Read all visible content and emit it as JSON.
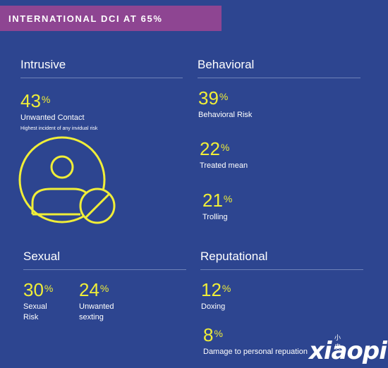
{
  "banner": "INTERNATIONAL DCI AT 65%",
  "sections": {
    "intrusive": "Intrusive",
    "behavioral": "Behavioral",
    "sexual": "Sexual",
    "reputational": "Reputational"
  },
  "stats": {
    "unwanted_contact": {
      "value": "43",
      "unit": "%",
      "label": "Unwanted Contact",
      "note": "Highest incident of any invidual risk"
    },
    "behavioral_risk": {
      "value": "39",
      "unit": "%",
      "label": "Behavioral Risk"
    },
    "treated_mean": {
      "value": "22",
      "unit": "%",
      "label": "Treated mean"
    },
    "trolling": {
      "value": "21",
      "unit": "%",
      "label": "Trolling"
    },
    "sexual_risk": {
      "value": "30",
      "unit": "%",
      "label_line1": "Sexual",
      "label_line2": "Risk"
    },
    "unwanted_sexting": {
      "value": "24",
      "unit": "%",
      "label_line1": "Unwanted",
      "label_line2": "sexting"
    },
    "doxing": {
      "value": "12",
      "unit": "%",
      "label": "Doxing"
    },
    "damage": {
      "value": "8",
      "unit": "%",
      "label": "Damage to personal repuation"
    }
  },
  "icon": "blocked-person-icon",
  "colors": {
    "background": "#2d4590",
    "banner": "#8e4592",
    "accent": "#f0ee38"
  },
  "watermark": {
    "cn": "小皮",
    "text": "xiaopi"
  }
}
